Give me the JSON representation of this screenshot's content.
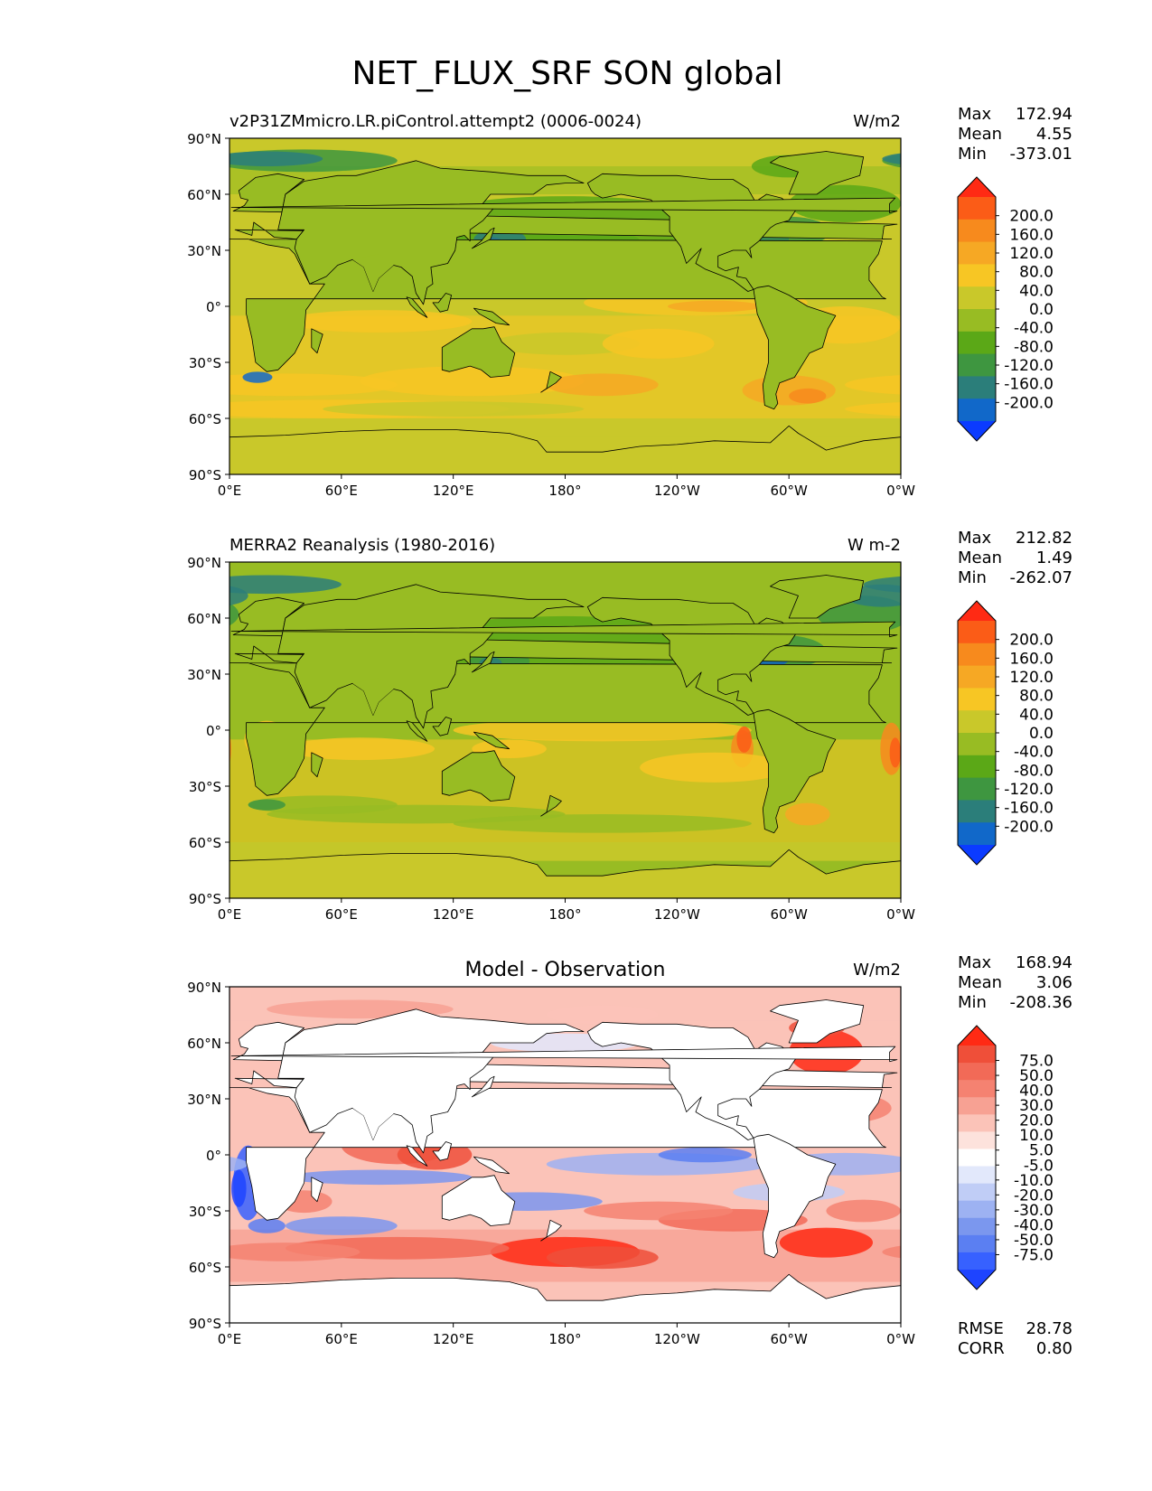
{
  "figure": {
    "title": "NET_FLUX_SRF SON global"
  },
  "axes": {
    "lat_ticks": [
      "90°N",
      "60°N",
      "30°N",
      "0°",
      "30°S",
      "60°S",
      "90°S"
    ],
    "lon_ticks": [
      "0°E",
      "60°E",
      "120°E",
      "180°",
      "120°W",
      "60°W",
      "0°W"
    ]
  },
  "colors": {
    "abs_levels": [
      "#0b3bff",
      "#1168c9",
      "#2b7e7a",
      "#3e9640",
      "#5ba817",
      "#98bc23",
      "#c9c82a",
      "#f7c624",
      "#f6a824",
      "#f78a1d",
      "#fb5c17",
      "#ff2a14"
    ],
    "diff_levels": [
      "#1e44ff",
      "#3761ff",
      "#5b7ff2",
      "#7b97ee",
      "#9db2f2",
      "#c0cdf6",
      "#e2e8fb",
      "#ffffff",
      "#fde2dc",
      "#fbc3b8",
      "#f7a193",
      "#f58271",
      "#f26a57",
      "#ef4f39",
      "#ff2a14"
    ],
    "land_line": "#000000"
  },
  "chart_data": [
    {
      "type": "heatmap",
      "panel": "test",
      "title": "v2P31ZMmicro.LR.piControl.attempt2 (0006-0024)",
      "units": "W/m2",
      "stats": {
        "max": "172.94",
        "mean": "4.55",
        "min": "-373.01"
      },
      "stat_labels": [
        "Max",
        "Mean",
        "Min"
      ],
      "colorbar_levels": [
        "200.0",
        "160.0",
        "120.0",
        "80.0",
        "40.0",
        "0.0",
        "-40.0",
        "-80.0",
        "-120.0",
        "-160.0",
        "-200.0"
      ],
      "xlim": [
        0,
        360
      ],
      "ylim": [
        -90,
        90
      ]
    },
    {
      "type": "heatmap",
      "panel": "reference",
      "title": "MERRA2 Reanalysis (1980-2016)",
      "units": "W m-2",
      "stats": {
        "max": "212.82",
        "mean": "1.49",
        "min": "-262.07"
      },
      "stat_labels": [
        "Max",
        "Mean",
        "Min"
      ],
      "colorbar_levels": [
        "200.0",
        "160.0",
        "120.0",
        "80.0",
        "40.0",
        "0.0",
        "-40.0",
        "-80.0",
        "-120.0",
        "-160.0",
        "-200.0"
      ],
      "xlim": [
        0,
        360
      ],
      "ylim": [
        -90,
        90
      ]
    },
    {
      "type": "heatmap",
      "panel": "difference",
      "title": "Model - Observation",
      "units": "W/m2",
      "stats": {
        "max": "168.94",
        "mean": "3.06",
        "min": "-208.36"
      },
      "stat_labels": [
        "Max",
        "Mean",
        "Min"
      ],
      "colorbar_levels": [
        "75.0",
        "50.0",
        "40.0",
        "30.0",
        "20.0",
        "10.0",
        "5.0",
        "-5.0",
        "-10.0",
        "-20.0",
        "-30.0",
        "-40.0",
        "-50.0",
        "-75.0"
      ],
      "extra_stats": [
        {
          "label": "RMSE",
          "value": "28.78"
        },
        {
          "label": "CORR",
          "value": "0.80"
        }
      ],
      "xlim": [
        0,
        360
      ],
      "ylim": [
        -90,
        90
      ]
    }
  ]
}
